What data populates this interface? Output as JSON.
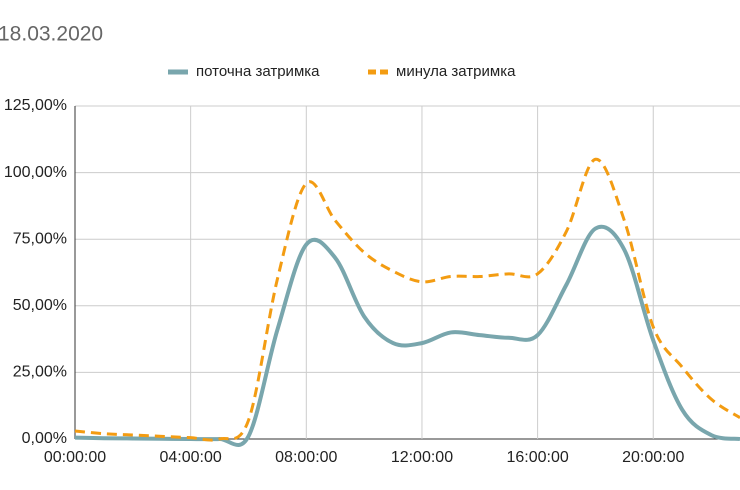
{
  "chart_data": {
    "type": "line",
    "title": "18.03.2020",
    "categories": [
      "00:00:00",
      null,
      null,
      null,
      "04:00:00",
      null,
      null,
      null,
      "08:00:00",
      null,
      null,
      null,
      "12:00:00",
      null,
      null,
      null,
      "16:00:00",
      null,
      null,
      null,
      "20:00:00",
      null,
      null,
      null
    ],
    "series": [
      {
        "name": "поточна затримка",
        "color": "#79a6ad",
        "dash": false,
        "values": [
          0.5,
          0.3,
          0.2,
          0.1,
          0,
          0,
          1,
          41,
          73,
          68,
          46,
          36,
          36,
          40,
          39,
          38,
          39,
          58,
          79,
          71,
          37,
          11,
          1.5,
          0
        ]
      },
      {
        "name": "минула затримка",
        "color": "#f39c12",
        "dash": true,
        "values": [
          3,
          2,
          1.5,
          1,
          0.5,
          0,
          7,
          60,
          96,
          82,
          70,
          63,
          59,
          61,
          61,
          62,
          62,
          78,
          105,
          82,
          42,
          27,
          15,
          8
        ]
      }
    ],
    "ylim": [
      0,
      125
    ],
    "yticks": [
      {
        "value": 0,
        "label": "0,00%"
      },
      {
        "value": 25,
        "label": "25,00%"
      },
      {
        "value": 50,
        "label": "50,00%"
      },
      {
        "value": 75,
        "label": "75,00%"
      },
      {
        "value": 100,
        "label": "100,00%"
      },
      {
        "value": 125,
        "label": "125,00%"
      }
    ],
    "grid": true,
    "legend": "top"
  }
}
